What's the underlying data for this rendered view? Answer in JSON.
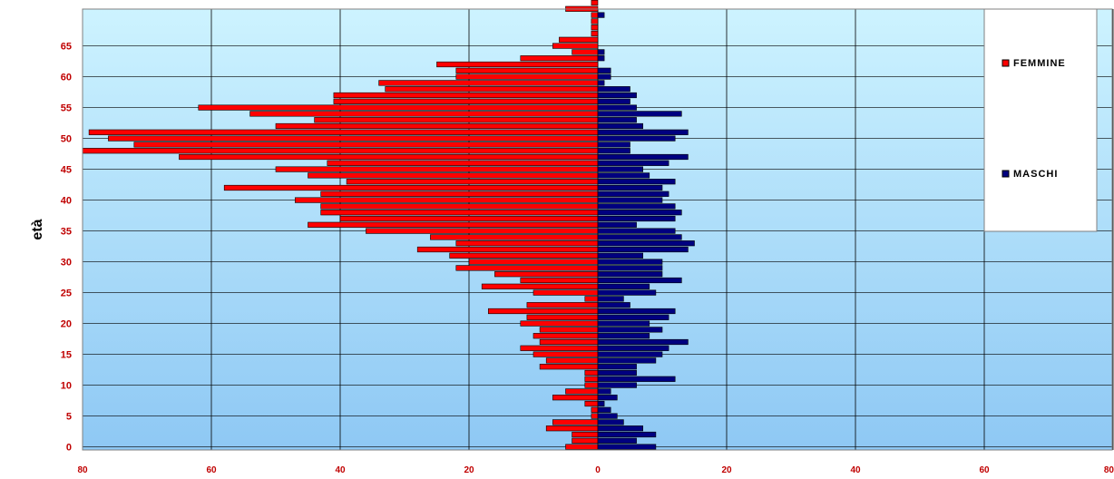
{
  "chart_data": {
    "type": "bar",
    "orientation": "horizontal",
    "title": "",
    "ylabel": "età",
    "xlabel": "",
    "y_ticks": [
      0,
      5,
      10,
      15,
      20,
      25,
      30,
      35,
      40,
      45,
      50,
      55,
      60,
      65,
      73
    ],
    "x_ticks": [
      80,
      60,
      40,
      20,
      0,
      20,
      40,
      60,
      80
    ],
    "xlim": [
      -80,
      80
    ],
    "ylim": [
      0,
      73
    ],
    "grid": true,
    "legend_position": "top-right",
    "series": [
      {
        "name": "FEMMINE",
        "color": "#ff0000",
        "direction": "left",
        "values": [
          5,
          4,
          4,
          8,
          7,
          1,
          1,
          2,
          7,
          5,
          2,
          2,
          2,
          9,
          8,
          10,
          12,
          9,
          10,
          9,
          12,
          11,
          17,
          11,
          2,
          10,
          18,
          12,
          16,
          22,
          20,
          23,
          28,
          22,
          26,
          36,
          45,
          40,
          43,
          43,
          47,
          43,
          58,
          39,
          45,
          50,
          42,
          65,
          80,
          72,
          76,
          79,
          50,
          44,
          54,
          62,
          41,
          41,
          33,
          34,
          22,
          22,
          25,
          12,
          4,
          7,
          6,
          1,
          1,
          1,
          1,
          5,
          1,
          1
        ]
      },
      {
        "name": "MASCHI",
        "color": "#000080",
        "direction": "right",
        "values": [
          9,
          6,
          9,
          7,
          4,
          3,
          2,
          1,
          3,
          2,
          6,
          12,
          6,
          6,
          9,
          10,
          11,
          14,
          8,
          10,
          8,
          11,
          12,
          5,
          4,
          9,
          8,
          13,
          10,
          10,
          10,
          7,
          14,
          15,
          13,
          12,
          6,
          12,
          13,
          12,
          10,
          11,
          10,
          12,
          8,
          7,
          11,
          14,
          5,
          5,
          12,
          14,
          7,
          6,
          13,
          6,
          5,
          6,
          5,
          1,
          2,
          2,
          0,
          1,
          1,
          0,
          0,
          0,
          0,
          0,
          1,
          0,
          0,
          0
        ]
      }
    ]
  }
}
